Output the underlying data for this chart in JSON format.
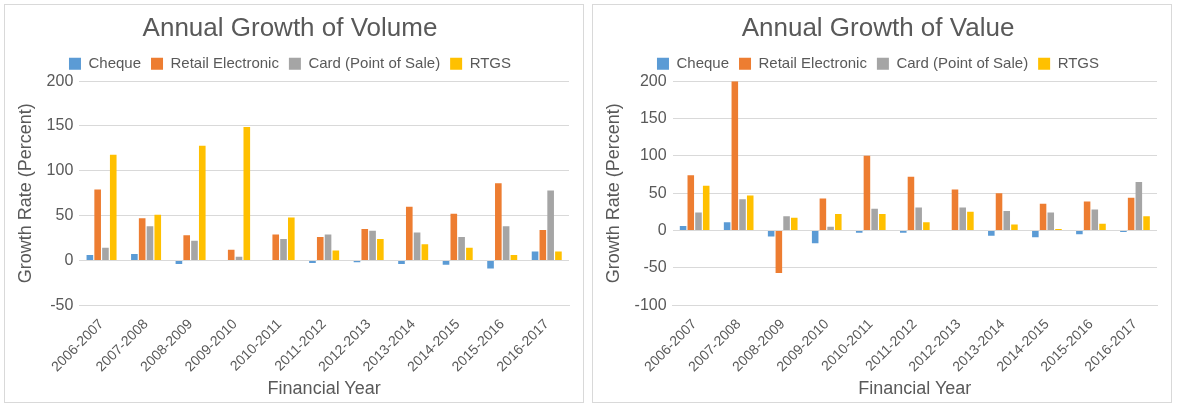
{
  "chart_data": [
    {
      "type": "bar",
      "title": "Annual Growth of Volume",
      "xlabel": "Financial Year",
      "ylabel": "Growth Rate (Percent)",
      "categories": [
        "2006-2007",
        "2007-2008",
        "2008-2009",
        "2009-2010",
        "2010-2011",
        "2011-2012",
        "2012-2013",
        "2013-2014",
        "2014-2015",
        "2015-2016",
        "2016-2017"
      ],
      "series": [
        {
          "name": "Cheque",
          "color": "#5b9bd5",
          "values": [
            6,
            7,
            -4,
            null,
            0,
            -3,
            -2,
            -4,
            -5,
            -9,
            10
          ]
        },
        {
          "name": "Retail Electronic",
          "color": "#ed7d31",
          "values": [
            79,
            47,
            28,
            12,
            29,
            26,
            35,
            60,
            52,
            86,
            34
          ]
        },
        {
          "name": "Card (Point of Sale)",
          "color": "#a5a5a5",
          "values": [
            14,
            38,
            22,
            4,
            24,
            29,
            33,
            31,
            26,
            38,
            78
          ]
        },
        {
          "name": "RTGS",
          "color": "#ffc000",
          "values": [
            118,
            51,
            128,
            149,
            48,
            11,
            24,
            18,
            14,
            6,
            10
          ]
        }
      ],
      "ylim": [
        -50,
        200
      ],
      "yticks": [
        -50,
        0,
        50,
        100,
        150,
        200
      ],
      "grid": "y",
      "legend": "top"
    },
    {
      "type": "bar",
      "title": "Annual Growth of Value",
      "xlabel": "Financial Year",
      "ylabel": "Growth Rate (Percent)",
      "categories": [
        "2006-2007",
        "2007-2008",
        "2008-2009",
        "2009-2010",
        "2010-2011",
        "2011-2012",
        "2012-2013",
        "2013-2014",
        "2014-2015",
        "2015-2016",
        "2016-2017"
      ],
      "series": [
        {
          "name": "Cheque",
          "color": "#5b9bd5",
          "values": [
            6,
            11,
            -8,
            -17,
            -3,
            -3,
            null,
            -7,
            -9,
            -5,
            -2
          ]
        },
        {
          "name": "Retail Electronic",
          "color": "#ed7d31",
          "values": [
            74,
            200,
            -57,
            43,
            100,
            72,
            55,
            50,
            36,
            39,
            44
          ]
        },
        {
          "name": "Card (Point of Sale)",
          "color": "#a5a5a5",
          "values": [
            24,
            42,
            19,
            5,
            29,
            31,
            31,
            26,
            24,
            28,
            65
          ]
        },
        {
          "name": "RTGS",
          "color": "#ffc000",
          "values": [
            60,
            47,
            17,
            22,
            22,
            11,
            25,
            8,
            2,
            9,
            19
          ]
        }
      ],
      "ylim": [
        -100,
        200
      ],
      "yticks": [
        -100,
        -50,
        0,
        50,
        100,
        150,
        200
      ],
      "grid": "y",
      "legend": "top"
    }
  ]
}
